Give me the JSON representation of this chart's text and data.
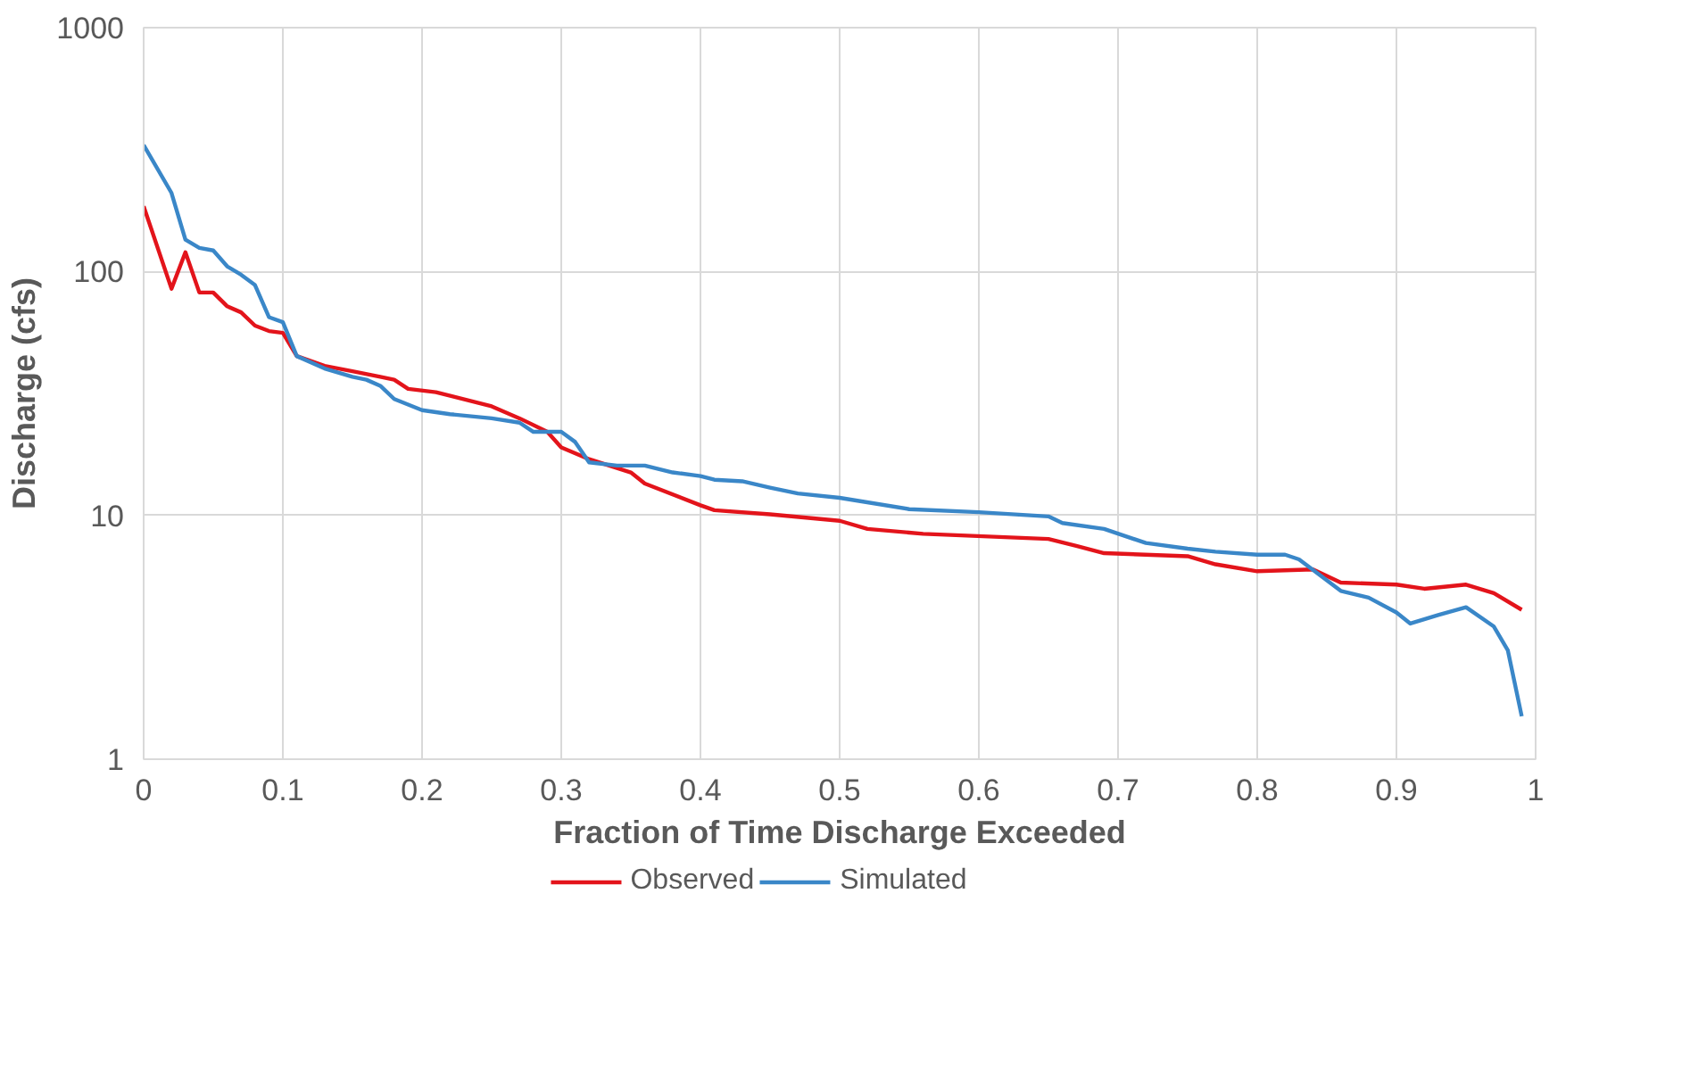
{
  "chart_data": {
    "type": "line",
    "xlabel": "Fraction of Time Discharge Exceeded",
    "ylabel": "Discharge (cfs)",
    "xlim": [
      0,
      1
    ],
    "xticks": [
      0,
      0.1,
      0.2,
      0.3,
      0.4,
      0.5,
      0.6,
      0.7,
      0.8,
      0.9,
      1
    ],
    "ylim": [
      1,
      1000
    ],
    "yticks": [
      1,
      10,
      100,
      1000
    ],
    "log": true,
    "grid": true,
    "legend": "bottom",
    "series": [
      {
        "name": "Observed",
        "color": "#e3141b",
        "x": [
          0,
          0.02,
          0.03,
          0.04,
          0.05,
          0.06,
          0.07,
          0.08,
          0.09,
          0.1,
          0.11,
          0.13,
          0.15,
          0.17,
          0.18,
          0.19,
          0.21,
          0.25,
          0.27,
          0.29,
          0.3,
          0.32,
          0.35,
          0.36,
          0.4,
          0.41,
          0.45,
          0.5,
          0.52,
          0.56,
          0.65,
          0.67,
          0.69,
          0.75,
          0.77,
          0.8,
          0.84,
          0.86,
          0.9,
          0.92,
          0.95,
          0.97,
          0.99
        ],
        "values": [
          185,
          85,
          120,
          82,
          82,
          72,
          68,
          60,
          57,
          56,
          45,
          41,
          39,
          37,
          36,
          33,
          32,
          28,
          25,
          22,
          19,
          17,
          15,
          13.5,
          11,
          10.5,
          10.1,
          9.5,
          8.8,
          8.4,
          8.0,
          7.5,
          7.0,
          6.8,
          6.3,
          5.9,
          6.0,
          5.3,
          5.2,
          5.0,
          5.2,
          4.8,
          4.1
        ]
      },
      {
        "name": "Simulated",
        "color": "#3a87c8",
        "x": [
          0,
          0.02,
          0.03,
          0.04,
          0.05,
          0.06,
          0.07,
          0.08,
          0.09,
          0.1,
          0.11,
          0.13,
          0.15,
          0.16,
          0.17,
          0.18,
          0.2,
          0.22,
          0.25,
          0.27,
          0.28,
          0.3,
          0.31,
          0.32,
          0.34,
          0.36,
          0.38,
          0.4,
          0.41,
          0.43,
          0.45,
          0.47,
          0.5,
          0.55,
          0.6,
          0.65,
          0.66,
          0.69,
          0.72,
          0.75,
          0.77,
          0.8,
          0.82,
          0.83,
          0.86,
          0.88,
          0.9,
          0.91,
          0.93,
          0.95,
          0.97,
          0.98,
          0.99
        ],
        "values": [
          330,
          210,
          135,
          125,
          122,
          105,
          97,
          88,
          65,
          62,
          45,
          40,
          37,
          36,
          34,
          30,
          27,
          26,
          25,
          24,
          22,
          22,
          20,
          16.5,
          16,
          16,
          15,
          14.5,
          14,
          13.8,
          13,
          12.3,
          11.8,
          10.6,
          10.3,
          9.9,
          9.3,
          8.8,
          7.7,
          7.3,
          7.1,
          6.9,
          6.9,
          6.6,
          4.9,
          4.6,
          4.0,
          3.6,
          3.9,
          4.2,
          3.5,
          2.8,
          1.5
        ]
      }
    ]
  }
}
